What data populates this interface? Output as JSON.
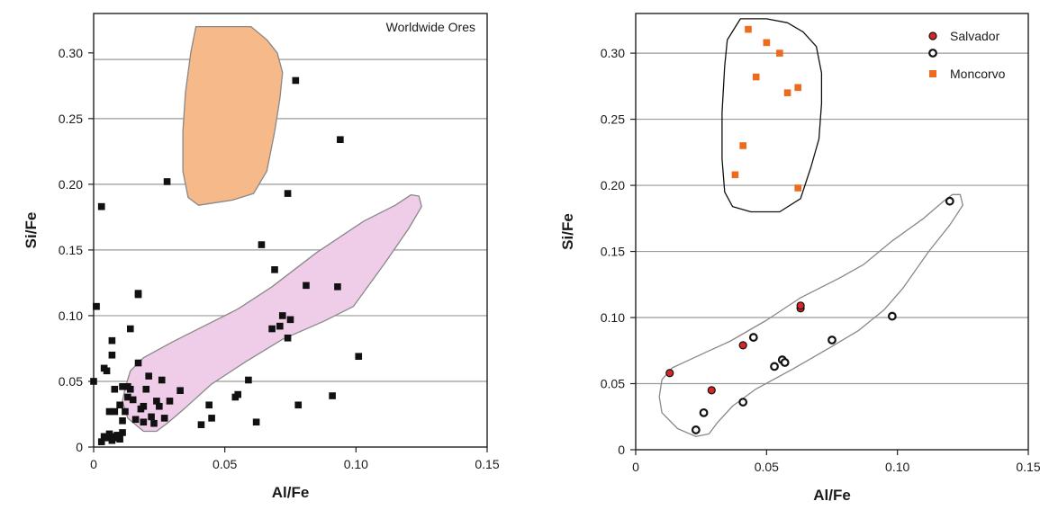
{
  "chart_data": [
    {
      "type": "scatter",
      "xlabel": "Al/Fe",
      "ylabel": "Si/Fe",
      "xlim": [
        0,
        0.15
      ],
      "ylim": [
        0,
        0.33
      ],
      "xticks": [
        "0",
        "0.05",
        "0.10",
        "0.15"
      ],
      "yticks": [
        "0",
        "0.05",
        "0.10",
        "0.15",
        "0.20",
        "0.25",
        "0.30"
      ],
      "grid": "horizontal",
      "annotation": "Worldwide Ores",
      "series": [
        {
          "marker": "square",
          "color": "#111111",
          "x": [
            0.0,
            0.001,
            0.003,
            0.004,
            0.005,
            0.006,
            0.007,
            0.007,
            0.008,
            0.008,
            0.009,
            0.01,
            0.011,
            0.011,
            0.012,
            0.013,
            0.013,
            0.003,
            0.004,
            0.005,
            0.006,
            0.007,
            0.008,
            0.009,
            0.01,
            0.011,
            0.014,
            0.015,
            0.016,
            0.017,
            0.017,
            0.018,
            0.019,
            0.019,
            0.02,
            0.021,
            0.022,
            0.023,
            0.024,
            0.025,
            0.026,
            0.027,
            0.029,
            0.033,
            0.041,
            0.044,
            0.045,
            0.054,
            0.055,
            0.059,
            0.062,
            0.064,
            0.068,
            0.069,
            0.071,
            0.072,
            0.074,
            0.074,
            0.075,
            0.077,
            0.078,
            0.081,
            0.091,
            0.093,
            0.094,
            0.101,
            0.003,
            0.001,
            0.014,
            0.017,
            0.028
          ],
          "y": [
            0.05,
            0.107,
            0.183,
            0.06,
            0.058,
            0.027,
            0.081,
            0.07,
            0.044,
            0.027,
            0.007,
            0.032,
            0.046,
            0.02,
            0.027,
            0.046,
            0.038,
            0.004,
            0.008,
            0.007,
            0.01,
            0.005,
            0.008,
            0.009,
            0.006,
            0.011,
            0.09,
            0.036,
            0.021,
            0.064,
            0.117,
            0.029,
            0.019,
            0.031,
            0.044,
            0.054,
            0.023,
            0.018,
            0.035,
            0.031,
            0.051,
            0.022,
            0.035,
            0.043,
            0.017,
            0.032,
            0.022,
            0.038,
            0.04,
            0.051,
            0.019,
            0.154,
            0.09,
            0.135,
            0.092,
            0.1,
            0.083,
            0.193,
            0.097,
            0.279,
            0.032,
            0.123,
            0.039,
            0.122,
            0.234,
            0.069,
            0.183,
            0.107,
            0.044,
            0.116,
            0.202
          ]
        }
      ],
      "regions": [
        {
          "color": "#f5b98a",
          "stroke": "#888888"
        },
        {
          "color": "#efcde8",
          "stroke": "#888888"
        }
      ]
    },
    {
      "type": "scatter",
      "xlabel": "Al/Fe",
      "ylabel": "Si/Fe",
      "xlim": [
        0,
        0.15
      ],
      "ylim": [
        0,
        0.33
      ],
      "xticks": [
        "0",
        "0.05",
        "0.10",
        "0.15"
      ],
      "yticks": [
        "0",
        "0.05",
        "0.10",
        "0.15",
        "0.20",
        "0.25",
        "0.30"
      ],
      "grid": "horizontal",
      "legend": "top-right",
      "series": [
        {
          "name": "Salvador",
          "marker": "circle-filled",
          "color": "#d62728",
          "x": [
            0.013,
            0.029,
            0.041,
            0.063,
            0.063
          ],
          "y": [
            0.058,
            0.045,
            0.079,
            0.107,
            0.109
          ]
        },
        {
          "name": "",
          "marker": "circle-open",
          "color": "#111111",
          "x": [
            0.023,
            0.026,
            0.041,
            0.045,
            0.053,
            0.056,
            0.057,
            0.075,
            0.098,
            0.12
          ],
          "y": [
            0.015,
            0.028,
            0.036,
            0.085,
            0.063,
            0.068,
            0.066,
            0.083,
            0.101,
            0.188
          ]
        },
        {
          "name": "Moncorvo",
          "marker": "square",
          "color": "#ee6a1c",
          "x": [
            0.038,
            0.041,
            0.043,
            0.046,
            0.05,
            0.055,
            0.058,
            0.062,
            0.062
          ],
          "y": [
            0.208,
            0.23,
            0.318,
            0.282,
            0.308,
            0.3,
            0.27,
            0.274,
            0.198
          ]
        }
      ],
      "legend_entries": [
        {
          "label": "Salvador",
          "marker": "circle-filled",
          "color": "#d62728"
        },
        {
          "label": "",
          "marker": "circle-open",
          "color": "#111111"
        },
        {
          "label": "Moncorvo",
          "marker": "square",
          "color": "#ee6a1c"
        }
      ],
      "regions": [
        {
          "color": "none",
          "stroke": "#111111"
        },
        {
          "color": "none",
          "stroke": "#888888"
        }
      ]
    }
  ]
}
